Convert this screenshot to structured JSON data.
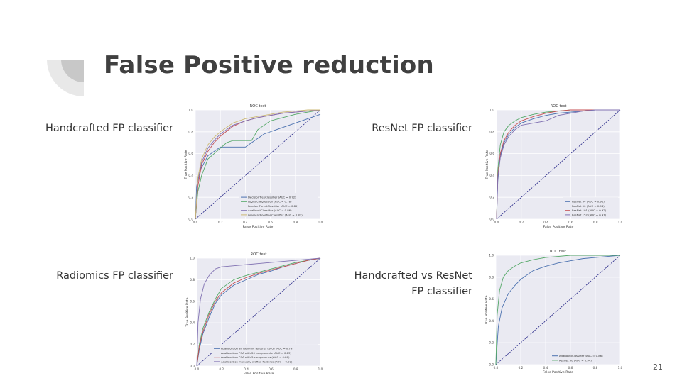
{
  "slide": {
    "title": "False Positive reduction",
    "page_number": "21",
    "labels": {
      "handcrafted": "Handcrafted FP classifier",
      "resnet": "ResNet FP classifier",
      "radiomics": "Radiomics FP classifier",
      "compare_line1": "Handcrafted vs ResNet",
      "compare_line2": "FP classifier"
    }
  },
  "chart_data": [
    {
      "id": "handcrafted",
      "type": "line",
      "title": "ROC test",
      "xlabel": "False Positive Rate",
      "ylabel": "True Positive Rate",
      "xlim": [
        0,
        1
      ],
      "ylim": [
        0,
        1
      ],
      "xticks": [
        "0.0",
        "0.2",
        "0.4",
        "0.6",
        "0.8",
        "1.0"
      ],
      "yticks": [
        "0.0",
        "0.2",
        "0.4",
        "0.6",
        "0.8",
        "1.0"
      ],
      "grid": true,
      "legend": "lower-right",
      "series": [
        {
          "name": "DecisionTreeClassifier (AUC = 0.72)",
          "color": "#4c72b0",
          "x": [
            0,
            0.01,
            0.04,
            0.1,
            0.2,
            0.4,
            0.55,
            1.0
          ],
          "y": [
            0,
            0.3,
            0.45,
            0.58,
            0.66,
            0.66,
            0.78,
            0.96
          ]
        },
        {
          "name": "LogisticRegression (AUC = 0.78)",
          "color": "#55a868",
          "x": [
            0,
            0.02,
            0.05,
            0.1,
            0.2,
            0.25,
            0.3,
            0.45,
            0.5,
            0.55,
            0.6,
            0.7,
            0.8,
            0.9,
            1.0
          ],
          "y": [
            0,
            0.25,
            0.4,
            0.55,
            0.65,
            0.7,
            0.72,
            0.72,
            0.82,
            0.86,
            0.9,
            0.93,
            0.96,
            0.98,
            1.0
          ]
        },
        {
          "name": "RandomForestClassifier (AUC = 0.85)",
          "color": "#c44e52",
          "x": [
            0,
            0.02,
            0.05,
            0.1,
            0.15,
            0.2,
            0.3,
            0.4,
            0.5,
            0.6,
            0.7,
            0.8,
            0.9,
            1.0
          ],
          "y": [
            0,
            0.3,
            0.5,
            0.62,
            0.7,
            0.76,
            0.85,
            0.9,
            0.93,
            0.95,
            0.97,
            0.98,
            0.99,
            1.0
          ]
        },
        {
          "name": "AdaBoostClassifier (AUC = 0.86)",
          "color": "#8172b2",
          "x": [
            0,
            0.02,
            0.05,
            0.1,
            0.15,
            0.2,
            0.3,
            0.4,
            0.5,
            0.6,
            0.7,
            0.8,
            0.9,
            1.0
          ],
          "y": [
            0,
            0.35,
            0.52,
            0.65,
            0.72,
            0.78,
            0.86,
            0.9,
            0.93,
            0.95,
            0.97,
            0.98,
            0.99,
            1.0
          ]
        },
        {
          "name": "GradientBoostingClassifier (AUC = 0.87)",
          "color": "#ccb974",
          "x": [
            0,
            0.02,
            0.05,
            0.1,
            0.15,
            0.2,
            0.3,
            0.4,
            0.5,
            0.6,
            0.7,
            0.8,
            0.9,
            1.0
          ],
          "y": [
            0,
            0.38,
            0.55,
            0.68,
            0.75,
            0.8,
            0.88,
            0.92,
            0.94,
            0.96,
            0.98,
            0.99,
            1.0,
            1.0
          ]
        }
      ]
    },
    {
      "id": "resnet",
      "type": "line",
      "title": "ROC test",
      "xlabel": "False Positive Rate",
      "ylabel": "True Positive Rate",
      "xlim": [
        0,
        1
      ],
      "ylim": [
        0,
        1
      ],
      "xticks": [
        "0.0",
        "0.2",
        "0.4",
        "0.6",
        "0.8",
        "1.0"
      ],
      "yticks": [
        "0.0",
        "0.2",
        "0.4",
        "0.6",
        "0.8",
        "1.0"
      ],
      "grid": true,
      "legend": "lower-right",
      "series": [
        {
          "name": "ResNet 34 (AUC = 0.91)",
          "color": "#4c72b0",
          "x": [
            0,
            0.01,
            0.03,
            0.06,
            0.1,
            0.15,
            0.2,
            0.3,
            0.4,
            0.5,
            0.6,
            0.7,
            0.8,
            0.9,
            1.0
          ],
          "y": [
            0,
            0.35,
            0.58,
            0.7,
            0.78,
            0.84,
            0.88,
            0.92,
            0.95,
            0.97,
            0.98,
            0.99,
            1.0,
            1.0,
            1.0
          ]
        },
        {
          "name": "ResNet 50 (AUC = 0.94)",
          "color": "#55a868",
          "x": [
            0,
            0.01,
            0.03,
            0.06,
            0.1,
            0.15,
            0.2,
            0.3,
            0.4,
            0.5,
            0.6,
            0.7,
            0.8,
            0.9,
            1.0
          ],
          "y": [
            0,
            0.45,
            0.68,
            0.8,
            0.86,
            0.9,
            0.93,
            0.96,
            0.98,
            0.99,
            1.0,
            1.0,
            1.0,
            1.0,
            1.0
          ]
        },
        {
          "name": "ResNet 101 (AUC = 0.92)",
          "color": "#c44e52",
          "x": [
            0,
            0.01,
            0.03,
            0.06,
            0.1,
            0.15,
            0.2,
            0.3,
            0.4,
            0.5,
            0.6,
            0.7,
            0.8,
            0.9,
            1.0
          ],
          "y": [
            0,
            0.4,
            0.6,
            0.72,
            0.8,
            0.86,
            0.9,
            0.94,
            0.97,
            0.99,
            1.0,
            1.0,
            1.0,
            1.0,
            1.0
          ]
        },
        {
          "name": "ResNet 152 (AUC = 0.91)",
          "color": "#8172b2",
          "x": [
            0,
            0.01,
            0.03,
            0.06,
            0.1,
            0.15,
            0.2,
            0.3,
            0.4,
            0.5,
            0.6,
            0.7,
            0.8,
            0.9,
            1.0
          ],
          "y": [
            0,
            0.38,
            0.56,
            0.68,
            0.76,
            0.82,
            0.86,
            0.88,
            0.9,
            0.95,
            0.97,
            0.99,
            1.0,
            1.0,
            1.0
          ]
        }
      ]
    },
    {
      "id": "radiomics",
      "type": "line",
      "title": "ROC test",
      "xlabel": "False Positive Rate",
      "ylabel": "True Positive Rate",
      "xlim": [
        0,
        1
      ],
      "ylim": [
        0,
        1
      ],
      "xticks": [
        "0.0",
        "0.2",
        "0.4",
        "0.6",
        "0.8",
        "1.0"
      ],
      "yticks": [
        "0.0",
        "0.2",
        "0.4",
        "0.6",
        "0.8",
        "1.0"
      ],
      "grid": true,
      "legend": "lower-right",
      "series": [
        {
          "name": "AdaBoost on all radiomic features (105) (AUC = 0.79)",
          "color": "#4c72b0",
          "x": [
            0,
            0.02,
            0.05,
            0.1,
            0.15,
            0.2,
            0.3,
            0.4,
            0.5,
            0.6,
            0.7,
            0.8,
            0.9,
            1.0
          ],
          "y": [
            0,
            0.15,
            0.3,
            0.45,
            0.58,
            0.66,
            0.75,
            0.8,
            0.85,
            0.88,
            0.92,
            0.95,
            0.98,
            1.0
          ]
        },
        {
          "name": "AdaBoost on PCA with 20 components (AUC = 0.83)",
          "color": "#55a868",
          "x": [
            0,
            0.02,
            0.05,
            0.1,
            0.15,
            0.2,
            0.3,
            0.4,
            0.5,
            0.6,
            0.7,
            0.8,
            0.9,
            1.0
          ],
          "y": [
            0,
            0.2,
            0.35,
            0.5,
            0.62,
            0.72,
            0.8,
            0.84,
            0.87,
            0.9,
            0.93,
            0.96,
            0.98,
            1.0
          ]
        },
        {
          "name": "AdaBoost on PCA with 5 components (AUC = 0.80)",
          "color": "#c44e52",
          "x": [
            0,
            0.02,
            0.05,
            0.1,
            0.15,
            0.2,
            0.3,
            0.4,
            0.5,
            0.6,
            0.7,
            0.8,
            0.9,
            1.0
          ],
          "y": [
            0,
            0.18,
            0.32,
            0.48,
            0.6,
            0.68,
            0.77,
            0.82,
            0.86,
            0.89,
            0.92,
            0.95,
            0.98,
            1.0
          ]
        },
        {
          "name": "AdaBoost on manually crafted features (AUC = 0.92)",
          "color": "#8172b2",
          "x": [
            0,
            0.01,
            0.03,
            0.06,
            0.1,
            0.15,
            0.2,
            0.3,
            0.4,
            0.5,
            0.6,
            0.7,
            0.8,
            0.9,
            1.0
          ],
          "y": [
            0,
            0.4,
            0.62,
            0.76,
            0.84,
            0.9,
            0.92,
            0.93,
            0.94,
            0.95,
            0.96,
            0.97,
            0.98,
            0.99,
            1.0
          ]
        }
      ]
    },
    {
      "id": "compare",
      "type": "line",
      "title": "ROC test",
      "xlabel": "False Positive Rate",
      "ylabel": "True Positive Rate",
      "xlim": [
        0,
        1
      ],
      "ylim": [
        0,
        1
      ],
      "xticks": [
        "0.0",
        "0.2",
        "0.4",
        "0.6",
        "0.8",
        "1.0"
      ],
      "yticks": [
        "0.0",
        "0.2",
        "0.4",
        "0.6",
        "0.8",
        "1.0"
      ],
      "grid": true,
      "legend": "lower-right",
      "series": [
        {
          "name": "AdaBoostClassifier (AUC = 0.86)",
          "color": "#4c72b0",
          "x": [
            0,
            0.02,
            0.05,
            0.1,
            0.15,
            0.2,
            0.3,
            0.4,
            0.5,
            0.6,
            0.7,
            0.8,
            0.9,
            1.0
          ],
          "y": [
            0,
            0.35,
            0.52,
            0.65,
            0.72,
            0.78,
            0.86,
            0.9,
            0.93,
            0.95,
            0.97,
            0.98,
            0.99,
            1.0
          ]
        },
        {
          "name": "ResNet 50 (AUC = 0.94)",
          "color": "#55a868",
          "x": [
            0,
            0.01,
            0.03,
            0.06,
            0.1,
            0.15,
            0.2,
            0.3,
            0.4,
            0.5,
            0.6,
            0.7,
            0.8,
            0.9,
            1.0
          ],
          "y": [
            0,
            0.45,
            0.68,
            0.8,
            0.86,
            0.9,
            0.93,
            0.96,
            0.98,
            0.99,
            1.0,
            1.0,
            1.0,
            1.0,
            1.0
          ]
        }
      ]
    }
  ]
}
